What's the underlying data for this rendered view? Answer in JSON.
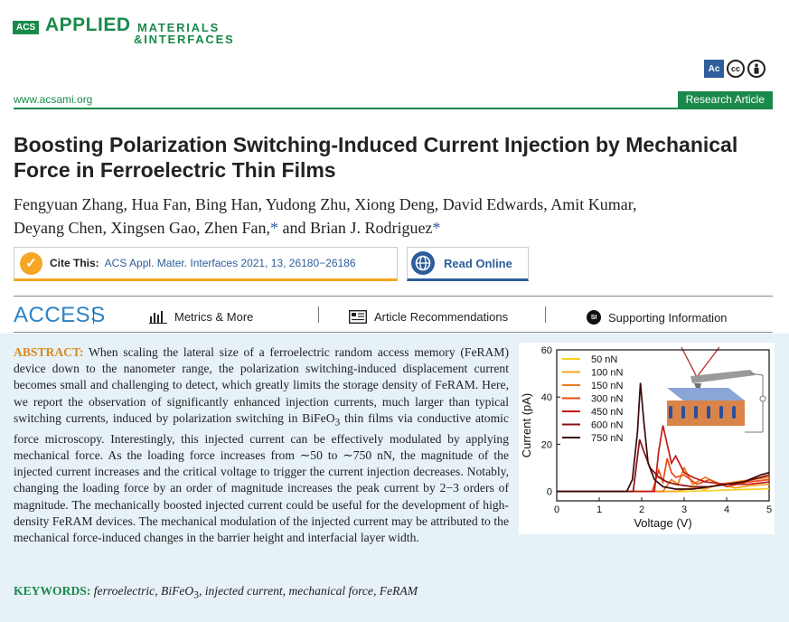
{
  "journal": {
    "badge": "ACS",
    "applied": "APPLIED",
    "materials": "MATERIALS",
    "interfaces": "&INTERFACES",
    "url": "www.acsami.org",
    "article_type": "Research Article",
    "oa_icons": [
      "Ac",
      "cc",
      "by"
    ]
  },
  "article": {
    "title": "Boosting Polarization Switching-Induced Current Injection by Mechanical Force in Ferroelectric Thin Films",
    "authors_line1": "Fengyuan Zhang, Hua Fan, Bing Han, Yudong Zhu, Xiong Deng, David Edwards, Amit Kumar,",
    "authors_line2_a": "Deyang Chen, Xingsen Gao, Zhen Fan,",
    "authors_line2_b": " and Brian J. Rodriguez",
    "asterisk": "*"
  },
  "cite": {
    "label": "Cite This:",
    "reference": "ACS Appl. Mater. Interfaces 2021, 13, 26180−26186",
    "read_online": "Read Online"
  },
  "access_bar": {
    "title": "ACCESS",
    "metrics": "Metrics & More",
    "recommendations": "Article Recommendations",
    "supporting": "Supporting Information",
    "si_badge": "SI"
  },
  "abstract": {
    "head": "ABSTRACT:",
    "body_1": "When scaling the lateral size of a ferroelectric random access memory (FeRAM) device down to the nanometer range, the polarization switching-induced displacement current becomes small and challenging to detect, which greatly limits the storage density of FeRAM. Here, we report the observation of significantly enhanced injection currents, much larger than typical switching currents, induced by polarization switching in BiFeO",
    "sub": "3",
    "body_2": " thin films via conductive atomic force microscopy. Interestingly, this injected current can be effectively modulated by applying mechanical force. As the loading force increases from ∼50 to ∼750 nN, the magnitude of the injected current increases and the critical voltage to trigger the current injection decreases. Notably, changing the loading force by an order of magnitude increases the peak current by 2−3 orders of magnitude. The mechanically boosted injected current could be useful for the development of high-density FeRAM devices. The mechanical modulation of the injected current may be attributed to the mechanical force-induced changes in the barrier height and interfacial layer width."
  },
  "keywords": {
    "head": "KEYWORDS:",
    "kw1": "ferroelectric,",
    "kw2a": "BiFeO",
    "kw2sub": "3",
    "kw2b": ",",
    "kw3": "injected current, mechanical force, FeRAM"
  },
  "chart_data": {
    "type": "line",
    "xlabel": "Voltage (V)",
    "ylabel": "Current (pA)",
    "xlim": [
      0,
      5
    ],
    "ylim": [
      -4,
      60
    ],
    "xticks": [
      0,
      1,
      2,
      3,
      4,
      5
    ],
    "yticks": [
      0,
      20,
      40,
      60
    ],
    "legend_position": "top-left",
    "series": [
      {
        "name": "50 nN",
        "color": "#f5d020",
        "x": [
          0,
          3.0,
          3.6,
          4.0,
          4.4,
          4.8,
          5.0
        ],
        "y": [
          0,
          0,
          0.3,
          0.6,
          0.8,
          1.0,
          1.2
        ]
      },
      {
        "name": "100 nN",
        "color": "#f5a623",
        "x": [
          0,
          2.8,
          3.2,
          3.5,
          3.8,
          4.2,
          4.6,
          5.0
        ],
        "y": [
          0,
          0,
          1.5,
          1.0,
          3.0,
          1.5,
          2.5,
          3.0
        ]
      },
      {
        "name": "150 nN",
        "color": "#f07a1a",
        "x": [
          0,
          2.5,
          2.7,
          2.85,
          3.0,
          3.2,
          3.5,
          3.8,
          4.2,
          4.6,
          5.0
        ],
        "y": [
          0,
          0,
          5.0,
          3.0,
          10.0,
          3.0,
          6.0,
          3.0,
          4.0,
          5.0,
          6.0
        ]
      },
      {
        "name": "300 nN",
        "color": "#e84a1a",
        "x": [
          0,
          2.25,
          2.4,
          2.5,
          2.6,
          2.7,
          2.8,
          3.0,
          3.3,
          3.6,
          4.0,
          4.5,
          5.0
        ],
        "y": [
          0,
          0,
          9.0,
          4.0,
          14.0,
          8.0,
          6.0,
          7.0,
          3.0,
          5.0,
          2.0,
          4.0,
          5.0
        ]
      },
      {
        "name": "450 nN",
        "color": "#c41a1a",
        "x": [
          0,
          2.3,
          2.4,
          2.5,
          2.6,
          2.7,
          2.8,
          3.0,
          3.2,
          3.5,
          4.0,
          4.5,
          5.0
        ],
        "y": [
          0,
          0,
          17.0,
          28.0,
          20.0,
          12.0,
          15.0,
          8.0,
          6.0,
          4.0,
          3.0,
          3.0,
          4.0
        ]
      },
      {
        "name": "600 nN",
        "color": "#8a1010",
        "x": [
          0,
          1.8,
          1.95,
          2.05,
          2.2,
          2.4,
          2.6,
          2.8,
          3.2,
          3.6,
          4.0,
          4.4,
          4.8,
          5.0
        ],
        "y": [
          0,
          0,
          22.0,
          17.0,
          10.0,
          6.0,
          4.0,
          3.0,
          2.0,
          2.0,
          3.0,
          4.0,
          6.0,
          7.0
        ]
      },
      {
        "name": "750 nN",
        "color": "#3a0a0a",
        "x": [
          0,
          1.65,
          1.78,
          1.9,
          1.97,
          2.05,
          2.15,
          2.3,
          2.5,
          2.8,
          3.2,
          3.6,
          4.0,
          4.4,
          4.8,
          5.0
        ],
        "y": [
          0,
          0,
          5.0,
          25.0,
          46.0,
          30.0,
          12.0,
          5.0,
          2.0,
          1.0,
          1.0,
          2.0,
          3.0,
          4.0,
          7.0,
          8.0
        ]
      }
    ]
  }
}
